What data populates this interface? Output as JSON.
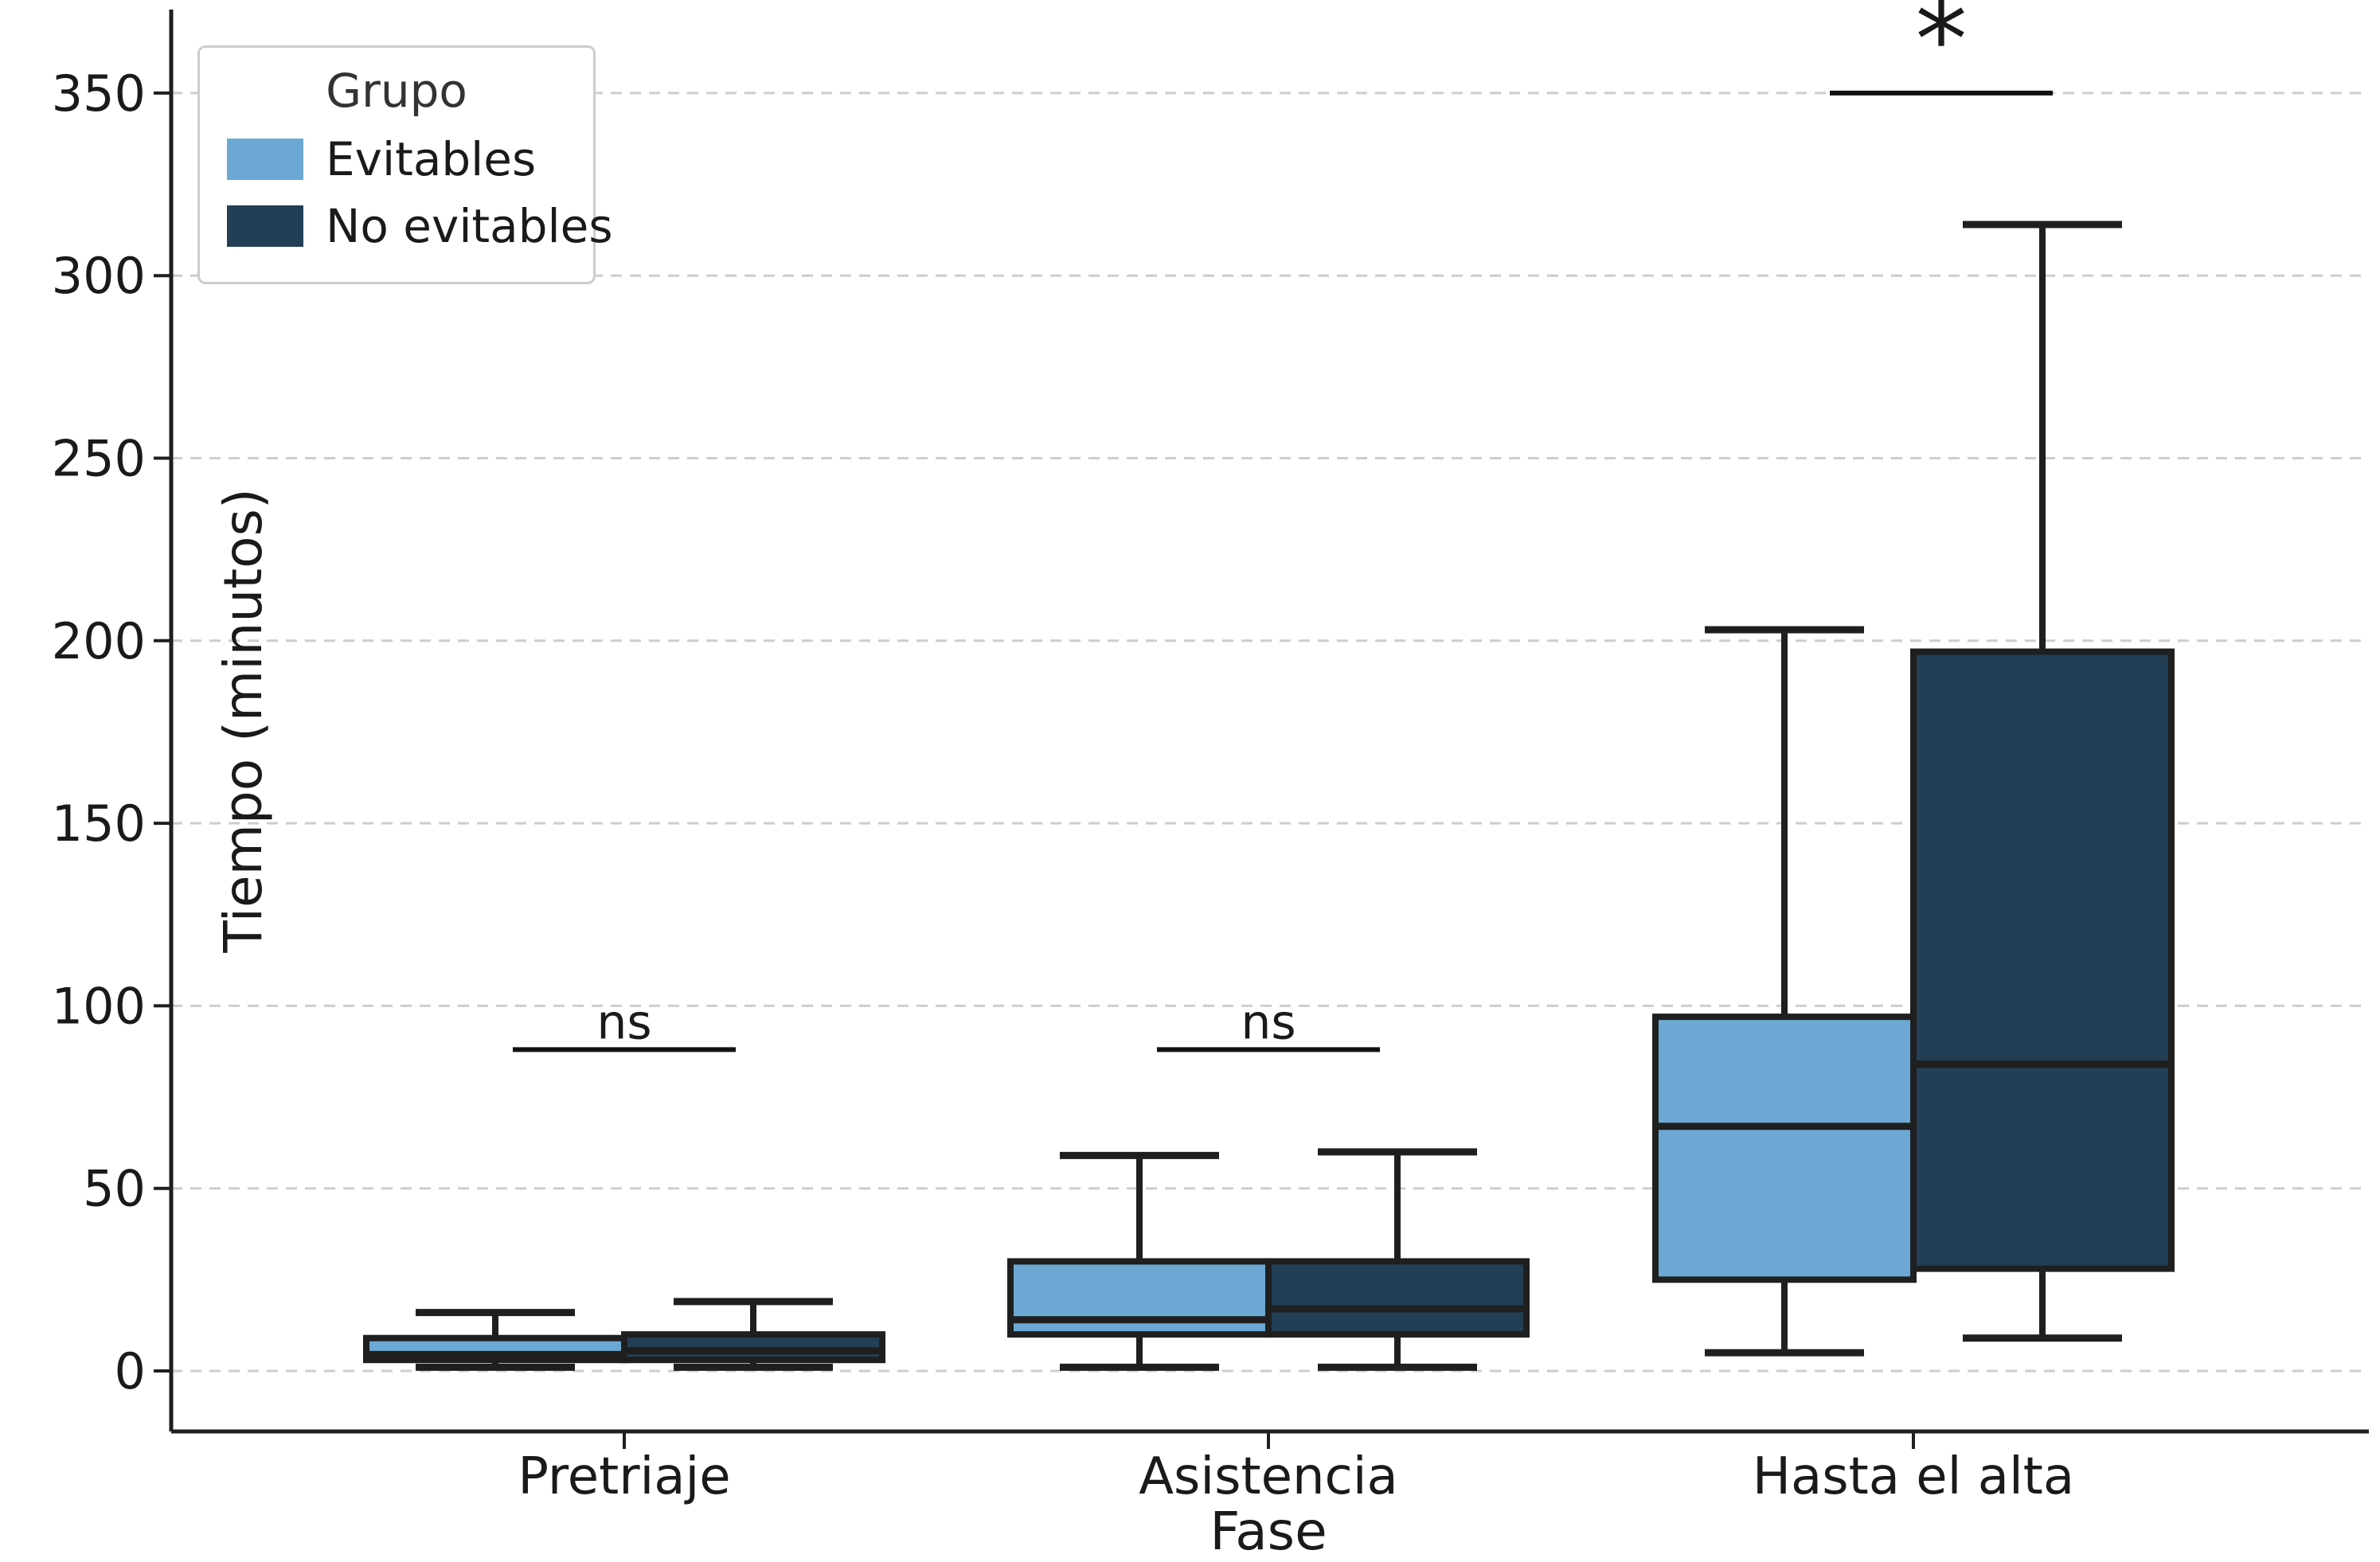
{
  "figure": {
    "background_color": "#ffffff",
    "text_color": "#1a1a1a",
    "spine_color": "#1f1f1f",
    "grid_color": "#cdcdcd",
    "box_edge_color": "#1f1f1f"
  },
  "chart_data": {
    "type": "boxplot",
    "title": "",
    "xlabel": "Fase",
    "ylabel": "Tiempo (minutos)",
    "categories": [
      "Pretriaje",
      "Asistencia",
      "Hasta el alta"
    ],
    "y_ticks": [
      0,
      50,
      100,
      150,
      200,
      250,
      300,
      350
    ],
    "ylim": [
      -17,
      372
    ],
    "grid": "horizontal-dashed",
    "legend": {
      "title": "Grupo",
      "position": "upper-left",
      "entries": [
        {
          "label": "Evitables",
          "color": "#6BA9D4"
        },
        {
          "label": "No evitables",
          "color": "#233F55"
        }
      ]
    },
    "series": [
      {
        "name": "Evitables",
        "color": "#6BA9D4",
        "boxes": [
          {
            "category": "Pretriaje",
            "whislo": 1,
            "q1": 3,
            "med": 4.5,
            "q3": 9,
            "whishi": 16
          },
          {
            "category": "Asistencia",
            "whislo": 1,
            "q1": 10,
            "med": 14,
            "q3": 30,
            "whishi": 59
          },
          {
            "category": "Hasta el alta",
            "whislo": 5,
            "q1": 25,
            "med": 67,
            "q3": 97,
            "whishi": 203
          }
        ]
      },
      {
        "name": "No evitables",
        "color": "#233F55",
        "boxes": [
          {
            "category": "Pretriaje",
            "whislo": 1,
            "q1": 3,
            "med": 5.5,
            "q3": 10,
            "whishi": 19
          },
          {
            "category": "Asistencia",
            "whislo": 1,
            "q1": 10,
            "med": 17,
            "q3": 30,
            "whishi": 60
          },
          {
            "category": "Hasta el alta",
            "whislo": 9,
            "q1": 28,
            "med": 84,
            "q3": 197,
            "whishi": 314
          }
        ]
      }
    ],
    "annotations": [
      {
        "category": "Pretriaje",
        "label": "ns",
        "bar_y": 88
      },
      {
        "category": "Asistencia",
        "label": "ns",
        "bar_y": 88
      },
      {
        "category": "Hasta el alta",
        "label": "*",
        "bar_y": 350
      }
    ]
  }
}
